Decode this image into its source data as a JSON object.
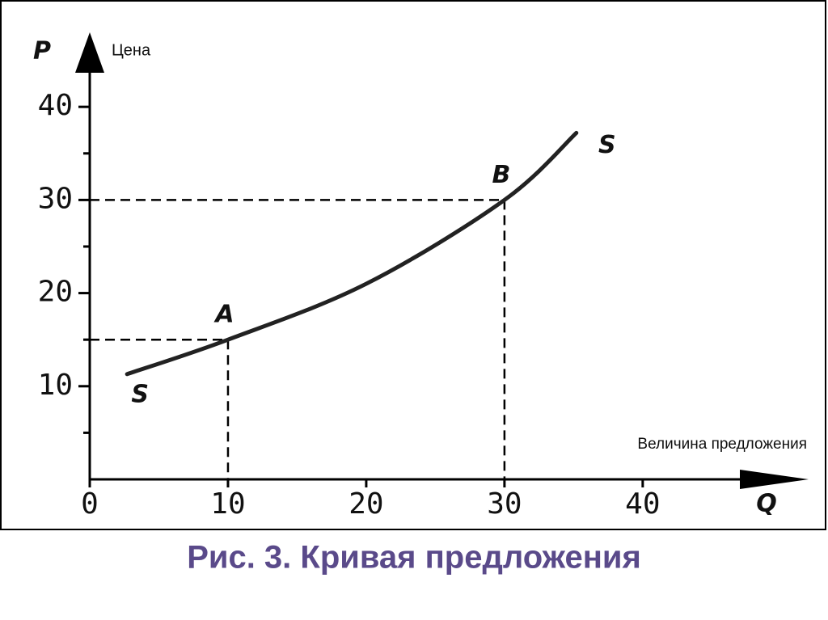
{
  "chart_data": {
    "type": "line",
    "title": "Рис. 3. Кривая предложения",
    "x_label": "Величина предложения",
    "x_symbol": "Q",
    "y_label": "Цена",
    "y_symbol": "P",
    "x": [
      2.7,
      10,
      20,
      30,
      35.2
    ],
    "series": [
      {
        "name": "S",
        "color": "#222222",
        "values": [
          11.3,
          15,
          21,
          30,
          37.2
        ]
      }
    ],
    "points": [
      {
        "label": "A",
        "x": 10,
        "y": 15
      },
      {
        "label": "B",
        "x": 30,
        "y": 30
      }
    ],
    "xlim": [
      0,
      52
    ],
    "ylim": [
      0,
      48
    ],
    "xticks": [
      0,
      10,
      20,
      30,
      40
    ],
    "yticks": [
      10,
      20,
      30,
      40
    ],
    "yminor_ticks": [
      5,
      15,
      25,
      35
    ]
  }
}
